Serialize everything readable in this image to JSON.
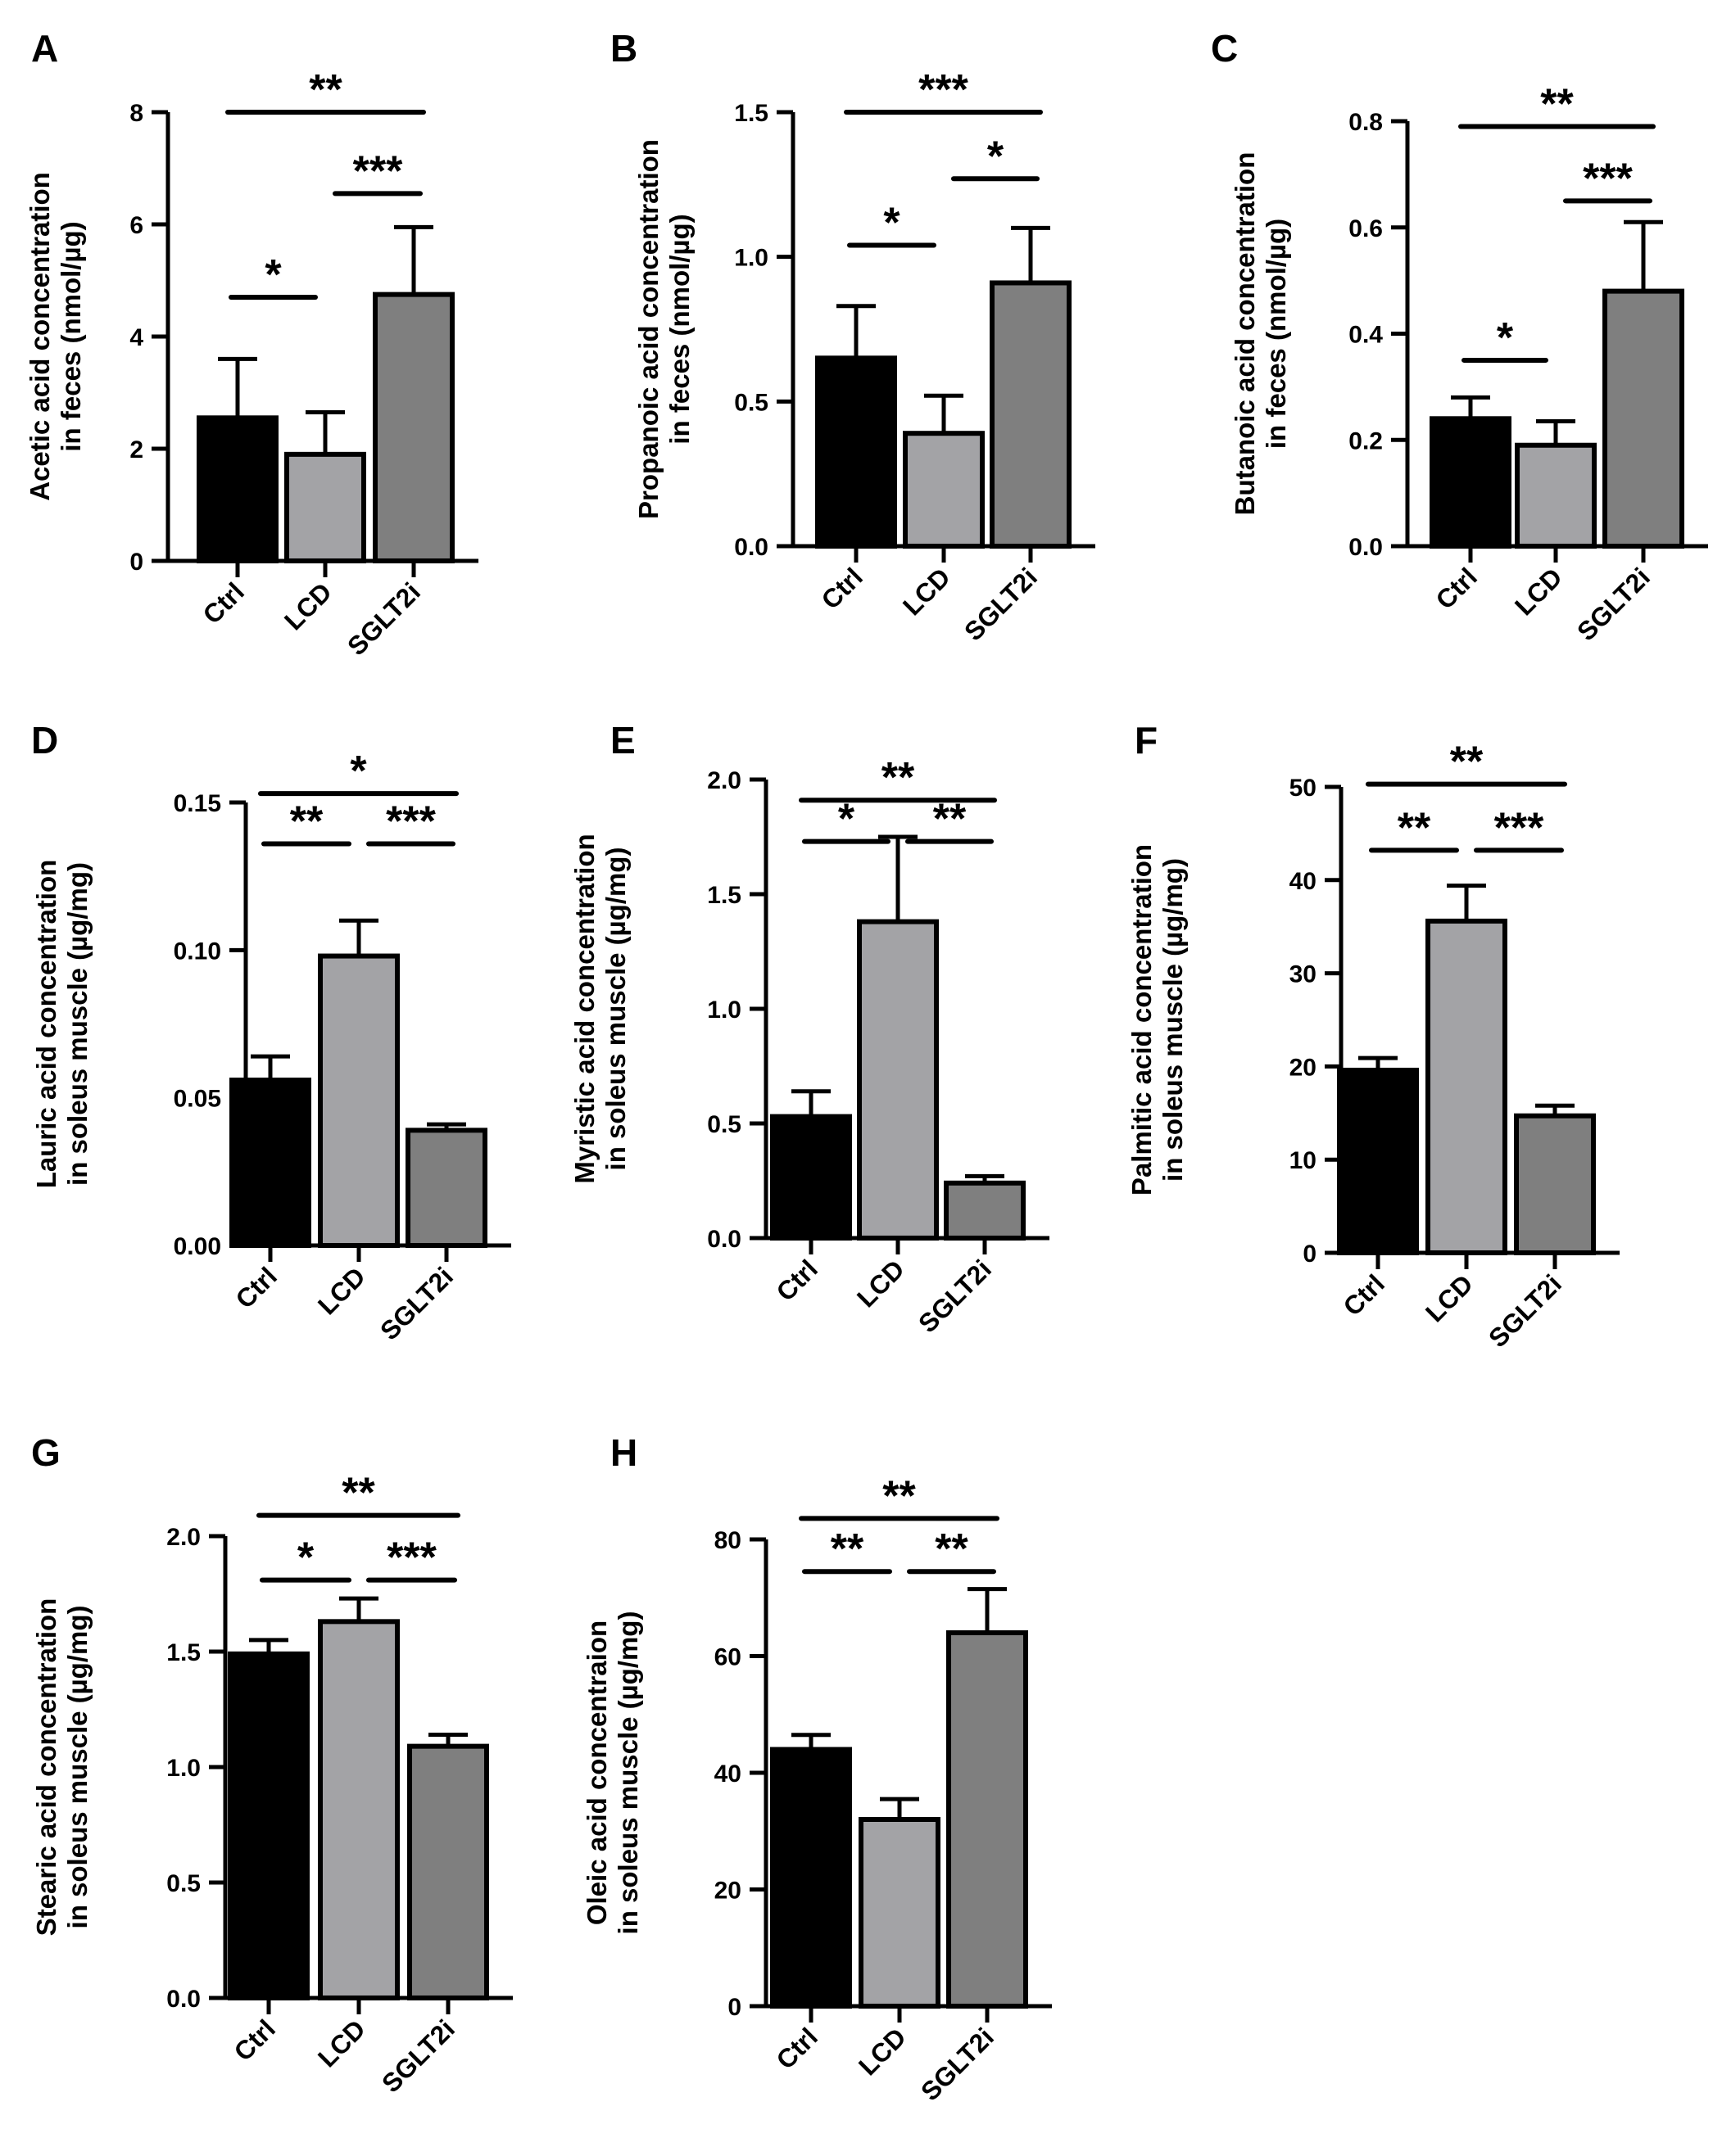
{
  "figure": {
    "colors": {
      "Ctrl": "#000000",
      "LCD": "#a3a3a6",
      "SGLT2i": "#7f7f7f",
      "axis": "#000000"
    }
  },
  "chart_data": [
    {
      "panel": "A",
      "type": "bar",
      "categories": [
        "Ctrl",
        "LCD",
        "SGLT2i"
      ],
      "values": [
        2.55,
        1.9,
        4.75
      ],
      "errors": [
        1.05,
        0.75,
        1.2
      ],
      "ylabel_lines": [
        "Acetic acid concentration",
        "in feces (nmol/µg)"
      ],
      "ylim": [
        0,
        8
      ],
      "ticks": [
        0,
        2,
        4,
        6,
        8
      ],
      "tick_labels": [
        "0",
        "2",
        "4",
        "6",
        "8"
      ],
      "significance": [
        {
          "from": 0,
          "to": 2,
          "label": "**",
          "level": 8.0
        },
        {
          "from": 0,
          "to": 1,
          "label": "*",
          "level": 4.7
        },
        {
          "from": 1,
          "to": 2,
          "label": "***",
          "level": 6.55
        }
      ]
    },
    {
      "panel": "B",
      "type": "bar",
      "categories": [
        "Ctrl",
        "LCD",
        "SGLT2i"
      ],
      "values": [
        0.65,
        0.39,
        0.91
      ],
      "errors": [
        0.18,
        0.13,
        0.19
      ],
      "ylabel_lines": [
        "Propanoic acid concentration",
        "in feces (nmol/µg)"
      ],
      "ylim": [
        0,
        1.5
      ],
      "ticks": [
        0,
        0.5,
        1.0,
        1.5
      ],
      "tick_labels": [
        "0.0",
        "0.5",
        "1.0",
        "1.5"
      ],
      "significance": [
        {
          "from": 0,
          "to": 2,
          "label": "***",
          "level": 1.5
        },
        {
          "from": 0,
          "to": 1,
          "label": "*",
          "level": 1.04
        },
        {
          "from": 1,
          "to": 2,
          "label": "*",
          "level": 1.27
        }
      ]
    },
    {
      "panel": "C",
      "type": "bar",
      "categories": [
        "Ctrl",
        "LCD",
        "SGLT2i"
      ],
      "values": [
        0.24,
        0.19,
        0.48
      ],
      "errors": [
        0.04,
        0.045,
        0.13
      ],
      "ylabel_lines": [
        "Butanoic acid  concentration",
        "in feces (nmol/µg)"
      ],
      "ylim": [
        0,
        0.8
      ],
      "ticks": [
        0,
        0.2,
        0.4,
        0.6,
        0.8
      ],
      "tick_labels": [
        "0.0",
        "0.2",
        "0.4",
        "0.6",
        "0.8"
      ],
      "significance": [
        {
          "from": 0,
          "to": 2,
          "label": "**",
          "level": 0.79
        },
        {
          "from": 0,
          "to": 1,
          "label": "*",
          "level": 0.35
        },
        {
          "from": 1,
          "to": 2,
          "label": "***",
          "level": 0.65
        }
      ]
    },
    {
      "panel": "D",
      "type": "bar",
      "categories": [
        "Ctrl",
        "LCD",
        "SGLT2i"
      ],
      "values": [
        0.056,
        0.098,
        0.039
      ],
      "errors": [
        0.008,
        0.012,
        0.002
      ],
      "ylabel_lines": [
        "Lauric acid concentration",
        "in soleus muscle (µg/mg)"
      ],
      "ylim": [
        0,
        0.15
      ],
      "ticks": [
        0,
        0.05,
        0.1,
        0.15
      ],
      "tick_labels": [
        "0.00",
        "0.05",
        "0.10",
        "0.15"
      ],
      "significance": [
        {
          "from": 0,
          "to": 2,
          "label": "*",
          "level": 0.153
        },
        {
          "from": 0,
          "to": 1,
          "label": "**",
          "level": 0.136
        },
        {
          "from": 1,
          "to": 2,
          "label": "***",
          "level": 0.136
        }
      ]
    },
    {
      "panel": "E",
      "type": "bar",
      "categories": [
        "Ctrl",
        "LCD",
        "SGLT2i"
      ],
      "values": [
        0.53,
        1.38,
        0.24
      ],
      "errors": [
        0.11,
        0.37,
        0.03
      ],
      "ylabel_lines": [
        "Myristic acid concentration",
        "in soleus muscle (µg/mg)"
      ],
      "ylim": [
        0,
        2.0
      ],
      "ticks": [
        0,
        0.5,
        1.0,
        1.5,
        2.0
      ],
      "tick_labels": [
        "0.0",
        "0.5",
        "1.0",
        "1.5",
        "2.0"
      ],
      "significance": [
        {
          "from": 0,
          "to": 2,
          "label": "**",
          "level": 1.91
        },
        {
          "from": 0,
          "to": 1,
          "label": "*",
          "level": 1.73
        },
        {
          "from": 1,
          "to": 2,
          "label": "**",
          "level": 1.73
        }
      ]
    },
    {
      "panel": "F",
      "type": "bar",
      "categories": [
        "Ctrl",
        "LCD",
        "SGLT2i"
      ],
      "values": [
        19.6,
        35.6,
        14.7
      ],
      "errors": [
        1.3,
        3.8,
        1.1
      ],
      "ylabel_lines": [
        "Palmitic acid concentration",
        "in soleus muscle (µg/mg)"
      ],
      "ylim": [
        0,
        50
      ],
      "ticks": [
        0,
        10,
        20,
        30,
        40,
        50
      ],
      "tick_labels": [
        "0",
        "10",
        "20",
        "30",
        "40",
        "50"
      ],
      "significance": [
        {
          "from": 0,
          "to": 2,
          "label": "**",
          "level": 50.3
        },
        {
          "from": 0,
          "to": 1,
          "label": "**",
          "level": 43.2
        },
        {
          "from": 1,
          "to": 2,
          "label": "***",
          "level": 43.2
        }
      ]
    },
    {
      "panel": "G",
      "type": "bar",
      "categories": [
        "Ctrl",
        "LCD",
        "SGLT2i"
      ],
      "values": [
        1.49,
        1.63,
        1.09
      ],
      "errors": [
        0.06,
        0.1,
        0.05
      ],
      "ylabel_lines": [
        "Stearic acid concentration",
        "in soleus muscle (µg/mg)"
      ],
      "ylim": [
        0,
        2.0
      ],
      "ticks": [
        0,
        0.5,
        1.0,
        1.5,
        2.0
      ],
      "tick_labels": [
        "0.0",
        "0.5",
        "1.0",
        "1.5",
        "2.0"
      ],
      "significance": [
        {
          "from": 0,
          "to": 2,
          "label": "**",
          "level": 2.09
        },
        {
          "from": 0,
          "to": 1,
          "label": "*",
          "level": 1.81
        },
        {
          "from": 1,
          "to": 2,
          "label": "***",
          "level": 1.81
        }
      ]
    },
    {
      "panel": "H",
      "type": "bar",
      "categories": [
        "Ctrl",
        "LCD",
        "SGLT2i"
      ],
      "values": [
        44,
        32,
        64
      ],
      "errors": [
        2.5,
        3.5,
        7.5
      ],
      "ylabel_lines": [
        "Oleic acid concentraion",
        "in soleus muscle (µg/mg)"
      ],
      "ylim": [
        0,
        80
      ],
      "ticks": [
        0,
        20,
        40,
        60,
        80
      ],
      "tick_labels": [
        "0",
        "20",
        "40",
        "60",
        "80"
      ],
      "significance": [
        {
          "from": 0,
          "to": 2,
          "label": "**",
          "level": 83.6
        },
        {
          "from": 0,
          "to": 1,
          "label": "**",
          "level": 74.5
        },
        {
          "from": 1,
          "to": 2,
          "label": "**",
          "level": 74.5
        }
      ]
    }
  ]
}
